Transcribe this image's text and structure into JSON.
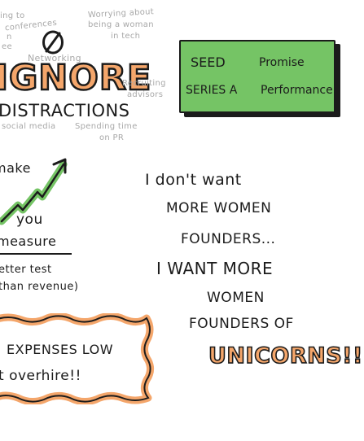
{
  "background": "#ffffff",
  "colors": {
    "accent_orange": "#f4a66b",
    "accent_green": "#75c465",
    "ink": "#1b1b1b",
    "faint": "#a8a8a8"
  },
  "distractions": {
    "icon": "no-entry-icon",
    "top_left_words": [
      "ing to",
      "conferences"
    ],
    "left_fragment_1": "n",
    "left_fragment_2": "ee",
    "networking": "Networking",
    "women_tech": [
      "Worrying about",
      "being a woman",
      "in tech"
    ],
    "title_ignore": "IGNORE",
    "recruiting": [
      "Recruiting",
      "advisors"
    ],
    "title_distractions": "DISTRACTIONS",
    "social_media": "social media",
    "pr": [
      "Spending time",
      "on PR"
    ]
  },
  "stages_box": {
    "left": [
      "SEED",
      "SERIES A"
    ],
    "right": [
      "Promise",
      "Performance"
    ]
  },
  "growth": {
    "make": "make",
    "icon": "growth-arrow-icon",
    "you": "you",
    "measure": "measure",
    "better_test": "etter test",
    "than_revenue": "than revenue)"
  },
  "quote": {
    "line1": "I don't want",
    "line2": "MORE WOMEN",
    "line3": "FOUNDERS...",
    "line4": "I WANT MORE",
    "line5": "WOMEN",
    "line6": "FOUNDERS OF",
    "unicorns": "UNICORNS!!"
  },
  "expenses": {
    "line1": "EXPENSES LOW",
    "line2": "t  overhire!!"
  }
}
